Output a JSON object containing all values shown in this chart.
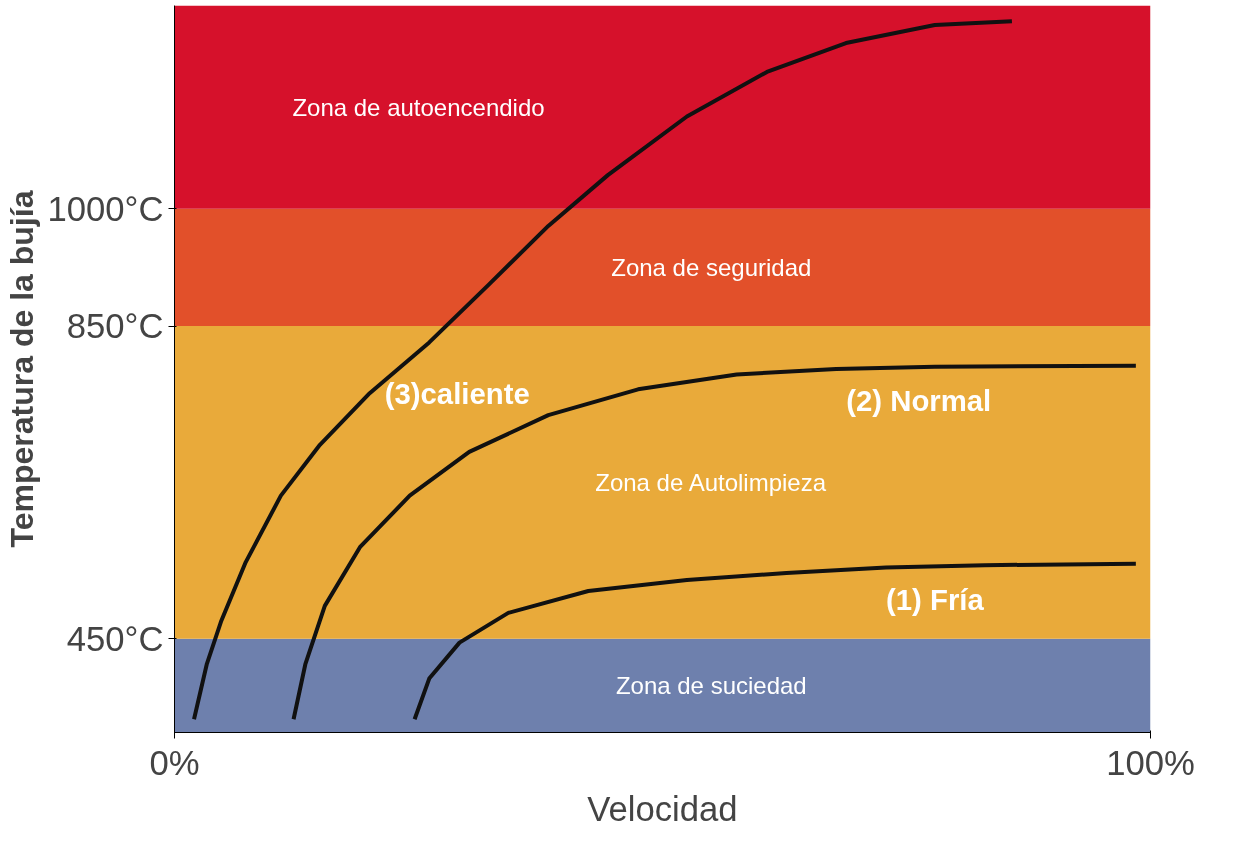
{
  "chart_data": {
    "type": "line",
    "xlabel": "Velocidad",
    "ylabel": "Temperatura de la bujía",
    "xlim": [
      0,
      100
    ],
    "xticks": [
      {
        "value": 0,
        "label": "0%"
      },
      {
        "value": 100,
        "label": "100%"
      }
    ],
    "ylim": [
      330,
      1260
    ],
    "yticks": [
      {
        "value": 450,
        "label": "450°C"
      },
      {
        "value": 850,
        "label": "850°C"
      },
      {
        "value": 1000,
        "label": "1000°C"
      }
    ],
    "grid": false,
    "line_style": "solid",
    "marker": "none",
    "bands": [
      {
        "axis": "y",
        "from": 330,
        "to": 450,
        "label": "Zona de suciedad",
        "color": "#6e80ad"
      },
      {
        "axis": "y",
        "from": 450,
        "to": 850,
        "label": "Zona de Autolimpieza",
        "color": "#e9aa3a"
      },
      {
        "axis": "y",
        "from": 850,
        "to": 1000,
        "label": "Zona de seguridad",
        "color": "#e2502a"
      },
      {
        "axis": "y",
        "from": 1000,
        "to": 1260,
        "label": "Zona de autoencendido",
        "color": "#d6112b"
      }
    ],
    "series": [
      {
        "name": "(3)caliente",
        "color": "#111111",
        "x": [
          2.0,
          3.3,
          4.8,
          7.3,
          10.9,
          14.9,
          20.0,
          26.1,
          32.2,
          38.3,
          44.4,
          52.5,
          60.7,
          68.8,
          77.9,
          85.8
        ],
        "values": [
          347,
          417,
          473,
          548,
          633,
          698,
          764,
          829,
          903,
          978,
          1043,
          1118,
          1175,
          1212,
          1235,
          1240
        ]
      },
      {
        "name": "(2) Normal",
        "color": "#111111",
        "x": [
          12.2,
          13.4,
          15.4,
          19.0,
          24.1,
          30.2,
          38.3,
          47.5,
          57.6,
          67.8,
          77.9,
          98.5
        ],
        "values": [
          347,
          417,
          492,
          567,
          633,
          689,
          736,
          769,
          788,
          795,
          798,
          799
        ]
      },
      {
        "name": "(1) Fría",
        "color": "#111111",
        "x": [
          24.6,
          26.1,
          29.2,
          34.2,
          42.4,
          52.5,
          62.7,
          72.9,
          83.0,
          98.5
        ],
        "values": [
          347,
          399,
          445,
          483,
          511,
          525,
          534,
          541,
          544,
          546
        ]
      }
    ]
  }
}
